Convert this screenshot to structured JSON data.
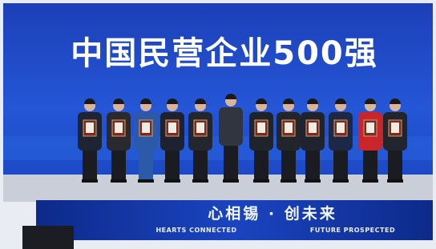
{
  "screen": {
    "title": "中国民营企业500强"
  },
  "banner": {
    "slogan": "心相锡 · 创未来",
    "left_caption": "HEARTS CONNECTED",
    "right_caption": "FUTURE PROSPECTED"
  }
}
